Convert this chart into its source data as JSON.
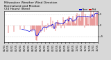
{
  "title_line1": "Milwaukee Weather Wind Direction",
  "title_line2": "Normalized and Median",
  "title_line3": "(24 Hours) (New)",
  "title_fontsize": 3.2,
  "bg_color": "#d8d8d8",
  "plot_bg_color": "#ffffff",
  "grid_color": "#aaaaaa",
  "ylim": [
    -7.5,
    6.5
  ],
  "xlim_min": 0,
  "xlim_max": 119,
  "tick_fontsize": 2.5,
  "legend_colors": [
    "#0000dd",
    "#dd0000"
  ],
  "bar_color": "#cc0000",
  "median_color": "#cc0000",
  "seed": 42,
  "n": 120
}
